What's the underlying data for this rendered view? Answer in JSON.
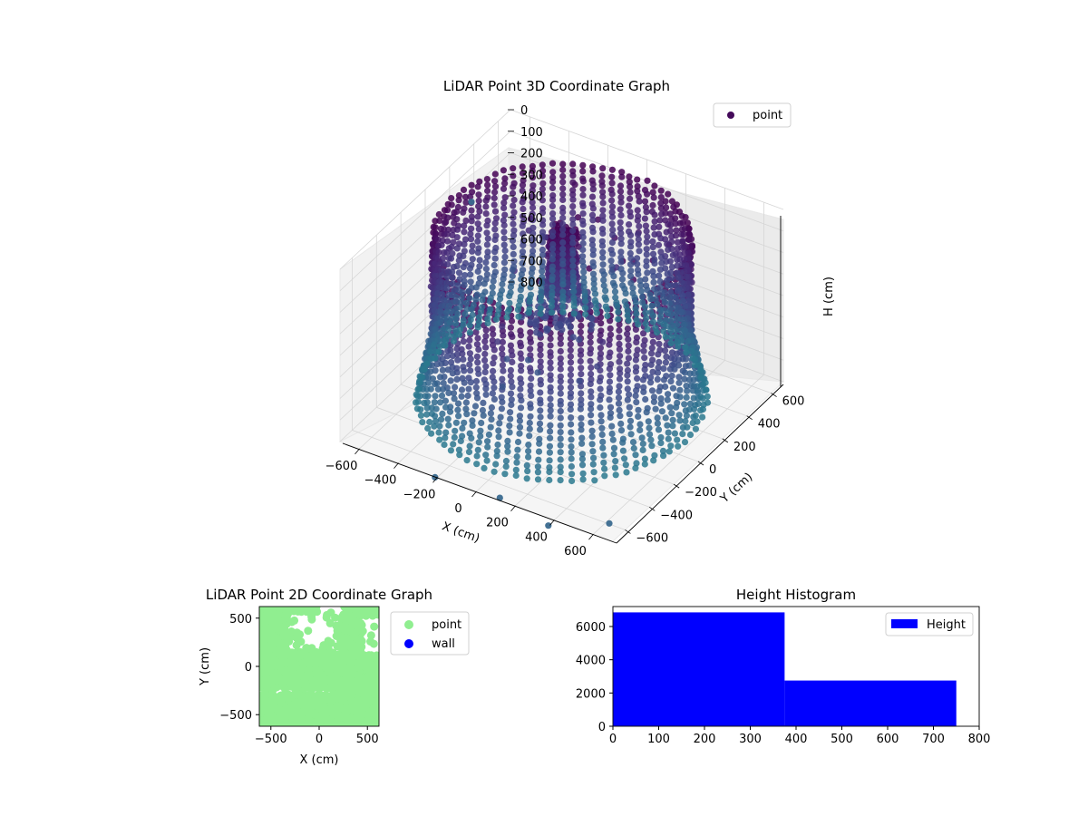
{
  "chart_data": [
    {
      "type": "scatter",
      "projection": "3d",
      "title": "LiDAR Point 3D Coordinate Graph",
      "xlabel": "X (cm)",
      "ylabel": "Y (cm)",
      "zlabel": "H (cm)",
      "xlim": [
        -700,
        700
      ],
      "ylim": [
        -700,
        700
      ],
      "zlim": [
        800,
        0
      ],
      "x_ticks": [
        "−600",
        "−400",
        "−200",
        "0",
        "200",
        "400",
        "600"
      ],
      "y_ticks": [
        "−600",
        "−400",
        "−200",
        "0",
        "200",
        "400",
        "600"
      ],
      "z_ticks": [
        "0",
        "100",
        "200",
        "300",
        "400",
        "500",
        "600",
        "700",
        "800"
      ],
      "x_tick_values": [
        -600,
        -400,
        -200,
        0,
        200,
        400,
        600
      ],
      "y_tick_values": [
        -600,
        -400,
        -200,
        0,
        200,
        400,
        600
      ],
      "z_tick_values": [
        0,
        100,
        200,
        300,
        400,
        500,
        600,
        700,
        800
      ],
      "grid": true,
      "legend": {
        "entries": [
          "point"
        ],
        "placement": "upper-right"
      },
      "colormap": "viridis",
      "description_of_data": {
        "ring_radius_cm": 560,
        "ring_height_range_cm": [
          0,
          750
        ],
        "inner_cluster_center_cm": [
          -30,
          60
        ],
        "inner_cluster_height_range_cm": [
          0,
          400
        ]
      },
      "outliers": [
        {
          "x": 120,
          "y": -700,
          "h": 790
        },
        {
          "x": 400,
          "y": -750,
          "h": 800
        },
        {
          "x": -200,
          "y": -720,
          "h": 790
        },
        {
          "x": 650,
          "y": -650,
          "h": 760
        },
        {
          "x": -650,
          "y": 300,
          "h": 200
        }
      ]
    },
    {
      "type": "scatter",
      "title": "LiDAR Point 2D Coordinate Graph",
      "xlabel": "X (cm)",
      "ylabel": "Y (cm)",
      "xlim": [
        -620,
        620
      ],
      "ylim": [
        -620,
        620
      ],
      "x_ticks": [
        "−500",
        "0",
        "500"
      ],
      "y_ticks": [
        "−500",
        "0",
        "500"
      ],
      "x_tick_values": [
        -500,
        0,
        500
      ],
      "y_tick_values": [
        -500,
        0,
        500
      ],
      "legend": {
        "entries": [
          "point",
          "wall"
        ],
        "placement": "outside-right"
      },
      "series": [
        {
          "name": "point",
          "color": "#90ee90"
        },
        {
          "name": "wall",
          "color": "#0000ff"
        }
      ]
    },
    {
      "type": "bar",
      "title": "Height Histogram",
      "xlim": [
        0,
        800
      ],
      "ylim": [
        0,
        7200
      ],
      "x_ticks": [
        "0",
        "100",
        "200",
        "300",
        "400",
        "500",
        "600",
        "700",
        "800"
      ],
      "y_ticks": [
        "0",
        "2000",
        "4000",
        "6000"
      ],
      "x_tick_values": [
        0,
        100,
        200,
        300,
        400,
        500,
        600,
        700,
        800
      ],
      "y_tick_values": [
        0,
        2000,
        4000,
        6000
      ],
      "bins": [
        {
          "start": 0,
          "end": 375,
          "count": 6850
        },
        {
          "start": 375,
          "end": 750,
          "count": 2750
        }
      ],
      "series": [
        {
          "name": "Height",
          "color": "#0000ff"
        }
      ],
      "legend": {
        "entries": [
          "Height"
        ],
        "placement": "upper-right"
      }
    }
  ]
}
